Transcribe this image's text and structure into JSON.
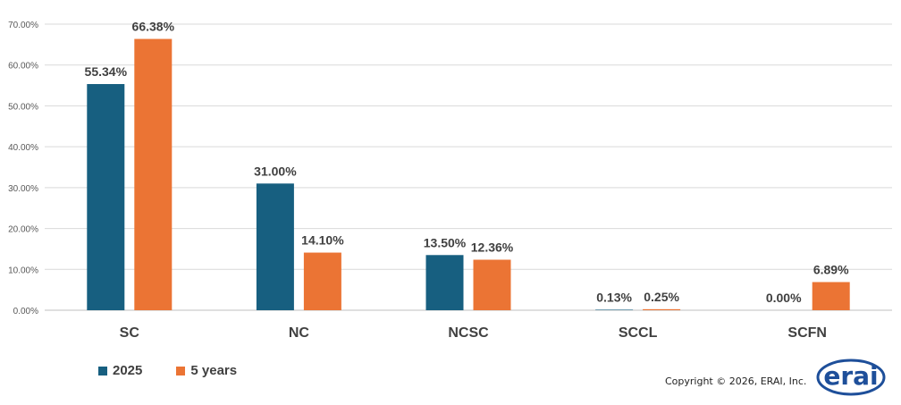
{
  "chart_data": {
    "type": "bar",
    "categories": [
      "SC",
      "NC",
      "NCSC",
      "SCCL",
      "SCFN"
    ],
    "series": [
      {
        "name": "2025",
        "values": [
          55.34,
          31.0,
          13.5,
          0.13,
          0.0
        ],
        "labels": [
          "55.34%",
          "31.00%",
          "13.50%",
          "0.13%",
          "0.00%"
        ],
        "color": "#175f80"
      },
      {
        "name": "5 years",
        "values": [
          66.38,
          14.1,
          12.36,
          0.25,
          6.89
        ],
        "labels": [
          "66.38%",
          "14.10%",
          "12.36%",
          "0.25%",
          "6.89%"
        ],
        "color": "#eb7434"
      }
    ],
    "yticks": [
      "0.00%",
      "10.00%",
      "20.00%",
      "30.00%",
      "40.00%",
      "50.00%",
      "60.00%",
      "70.00%"
    ],
    "ylim": [
      0,
      70
    ],
    "grid": true,
    "legend_position": "bottom-left"
  },
  "legend": {
    "items": [
      {
        "label": "2025",
        "color": "#175f80"
      },
      {
        "label": "5 years",
        "color": "#eb7434"
      }
    ]
  },
  "footer": {
    "copyright": "Copyright © 2026, ERAI, Inc.",
    "logo_text": "erai",
    "logo_color": "#1e4f9a"
  }
}
